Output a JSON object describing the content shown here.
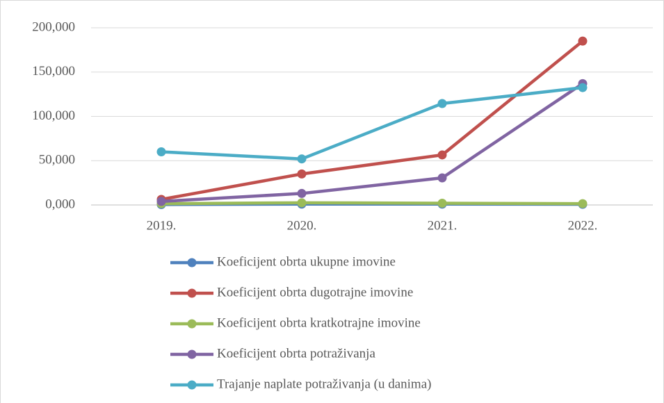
{
  "chart_data": {
    "type": "line",
    "categories": [
      "2019.",
      "2020.",
      "2021.",
      "2022."
    ],
    "series": [
      {
        "name": "Koeficijent obrta ukupne imovine",
        "color": "#4f81bd",
        "values": [
          0.5,
          1,
          1,
          0.8
        ]
      },
      {
        "name": "Koeficijent obrta dugotrajne imovine",
        "color": "#c0504d",
        "values": [
          6.3,
          35,
          56.5,
          185
        ]
      },
      {
        "name": "Koeficijent obrta kratkotrajne imovine",
        "color": "#9bbb59",
        "values": [
          1.5,
          2.5,
          2,
          1.5
        ]
      },
      {
        "name": "Koeficijent obrta potraživanja",
        "color": "#8064a2",
        "values": [
          4,
          13,
          30.6,
          137
        ]
      },
      {
        "name": "Trajanje naplate potraživanja (u danima)",
        "color": "#4bacc6",
        "values": [
          60,
          52,
          114.5,
          132.5
        ]
      }
    ],
    "ylim": [
      0,
      200
    ],
    "yticks": [
      {
        "value": 0,
        "label": "0,000"
      },
      {
        "value": 50,
        "label": "50,000"
      },
      {
        "value": 100,
        "label": "100,000"
      },
      {
        "value": 150,
        "label": "150,000"
      },
      {
        "value": 200,
        "label": "200,000"
      }
    ],
    "grid": true,
    "legend": "bottom"
  }
}
